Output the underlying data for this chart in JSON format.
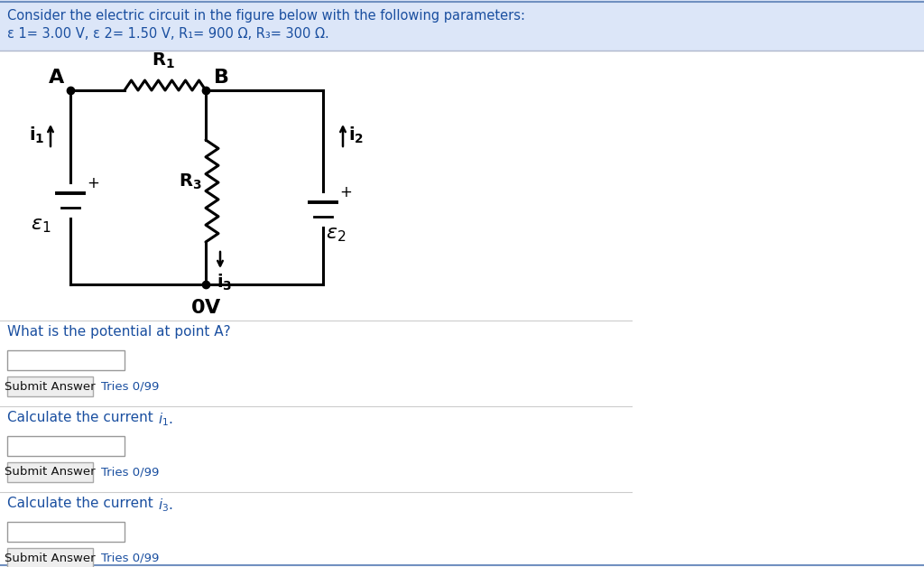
{
  "title_text": "Consider the electric circuit in the figure below with the following parameters:",
  "params_text": "ε 1= 3.00 V, ε 2= 1.50 V, R₁= 900 Ω, R₃= 300 Ω.",
  "bg_color": "#ffffff",
  "header_bg": "#dce6f8",
  "border_color": "#7090c0",
  "circuit_line_color": "#000000",
  "text_color": "#111111",
  "blue_text": "#1a4fa0",
  "q1": "What is the potential at point A?",
  "q2": "Calculate the current i₁.",
  "q3": "Calculate the current i₃.",
  "q1_sub": "i",
  "q1_sub_n": "1",
  "q2_sub": "i",
  "q2_sub_n": "3"
}
